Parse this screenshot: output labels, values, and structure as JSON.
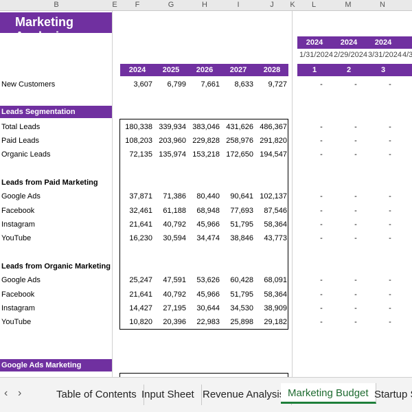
{
  "columns": [
    "B",
    "E",
    "F",
    "G",
    "H",
    "I",
    "J",
    "K",
    "L",
    "M",
    "N"
  ],
  "title": "Marketing Analysis",
  "years": [
    "2024",
    "2025",
    "2026",
    "2027",
    "2028"
  ],
  "months": {
    "years": [
      "2024",
      "2024",
      "2024"
    ],
    "dates": [
      "1/31/2024",
      "2/29/2024",
      "3/31/2024",
      "4/3"
    ],
    "numbers": [
      "1",
      "2",
      "3"
    ]
  },
  "rows": {
    "new_customers": {
      "label": "New Customers",
      "values": [
        "3,607",
        "6,799",
        "7,661",
        "8,633",
        "9,727"
      ]
    },
    "leads_segmentation": "Leads Segmentation",
    "total_leads": {
      "label": "Total Leads",
      "values": [
        "180,338",
        "339,934",
        "383,046",
        "431,626",
        "486,367"
      ]
    },
    "paid_leads": {
      "label": "Paid Leads",
      "values": [
        "108,203",
        "203,960",
        "229,828",
        "258,976",
        "291,820"
      ]
    },
    "organic_leads": {
      "label": "Organic Leads",
      "values": [
        "72,135",
        "135,974",
        "153,218",
        "172,650",
        "194,547"
      ]
    },
    "paid_header": "Leads from Paid Marketing",
    "paid_google": {
      "label": "Google Ads",
      "values": [
        "37,871",
        "71,386",
        "80,440",
        "90,641",
        "102,137"
      ]
    },
    "paid_facebook": {
      "label": "Facebook",
      "values": [
        "32,461",
        "61,188",
        "68,948",
        "77,693",
        "87,546"
      ]
    },
    "paid_instagram": {
      "label": "Instagram",
      "values": [
        "21,641",
        "40,792",
        "45,966",
        "51,795",
        "58,364"
      ]
    },
    "paid_youtube": {
      "label": "YouTube",
      "values": [
        "16,230",
        "30,594",
        "34,474",
        "38,846",
        "43,773"
      ]
    },
    "organic_header": "Leads from Organic Marketing",
    "org_google": {
      "label": "Google Ads",
      "values": [
        "25,247",
        "47,591",
        "53,626",
        "60,428",
        "68,091"
      ]
    },
    "org_facebook": {
      "label": "Facebook",
      "values": [
        "21,641",
        "40,792",
        "45,966",
        "51,795",
        "58,364"
      ]
    },
    "org_instagram": {
      "label": "Instagram",
      "values": [
        "14,427",
        "27,195",
        "30,644",
        "34,530",
        "38,909"
      ]
    },
    "org_youtube": {
      "label": "YouTube",
      "values": [
        "10,820",
        "20,396",
        "22,983",
        "25,898",
        "29,182"
      ]
    },
    "google_ads_marketing": "Google Ads Marketing"
  },
  "dash": "-",
  "tabs": [
    "Table of Contents",
    "Input Sheet",
    "Revenue Analysis",
    "Marketing Budget",
    "Startup Su"
  ],
  "active_tab": "Marketing Budget",
  "nav": {
    "prev": "‹",
    "next": "›"
  },
  "colors": {
    "accent": "#7030a0",
    "active_tab": "#1e7f3a"
  }
}
